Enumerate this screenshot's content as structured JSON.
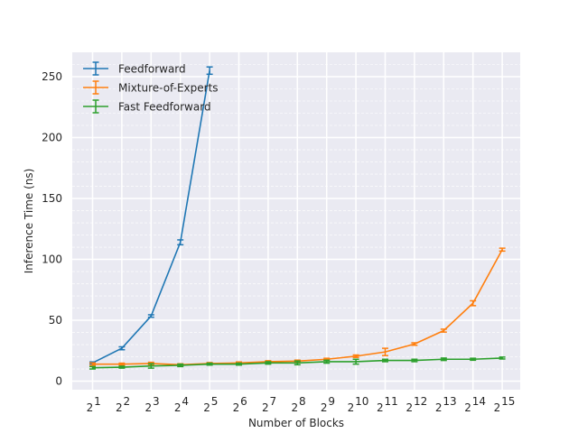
{
  "chart_data": {
    "type": "line",
    "xlabel": "Number of Blocks",
    "ylabel": "Inference Time (ns)",
    "x_scale": "log2",
    "x_base_label": "2",
    "x_exponents": [
      "1",
      "2",
      "3",
      "4",
      "5",
      "6",
      "7",
      "8",
      "9",
      "10",
      "11",
      "12",
      "13",
      "14",
      "15"
    ],
    "x": [
      2,
      4,
      8,
      16,
      32,
      64,
      128,
      256,
      512,
      1024,
      2048,
      4096,
      8192,
      16384,
      32768
    ],
    "ylim": [
      -7,
      270
    ],
    "yticks": [
      0,
      50,
      100,
      150,
      200,
      250
    ],
    "grid": true,
    "legend_position": "top-left",
    "series": [
      {
        "name": "Feedforward",
        "color": "#1f77b4",
        "x": [
          2,
          4,
          8,
          16,
          32
        ],
        "values": [
          15,
          27,
          53.5,
          114,
          255
        ],
        "errors": [
          0.8,
          1.2,
          1.0,
          2.0,
          3.0
        ]
      },
      {
        "name": "Mixture-of-Experts",
        "color": "#ff7f0e",
        "x": [
          2,
          4,
          8,
          16,
          32,
          64,
          128,
          256,
          512,
          1024,
          2048,
          4096,
          8192,
          16384,
          32768
        ],
        "values": [
          14,
          14,
          14.5,
          13.5,
          14.5,
          15,
          16,
          16.5,
          18,
          20.5,
          24,
          30.5,
          41.5,
          64,
          108
        ],
        "errors": [
          1.0,
          0.8,
          1.0,
          0.8,
          0.8,
          0.8,
          0.8,
          0.8,
          0.8,
          1.0,
          3.0,
          1.0,
          1.2,
          2.0,
          1.2
        ]
      },
      {
        "name": "Fast Feedforward",
        "color": "#2ca02c",
        "x": [
          2,
          4,
          8,
          16,
          32,
          64,
          128,
          256,
          512,
          1024,
          2048,
          4096,
          8192,
          16384,
          32768
        ],
        "values": [
          11,
          11.5,
          12.5,
          13,
          14,
          14,
          15,
          15,
          16,
          16,
          17,
          17,
          18,
          18,
          19
        ],
        "errors": [
          1.0,
          0.8,
          1.8,
          1.0,
          0.8,
          0.8,
          1.0,
          1.5,
          1.2,
          2.0,
          1.0,
          1.0,
          1.0,
          0.8,
          0.8
        ]
      }
    ]
  }
}
